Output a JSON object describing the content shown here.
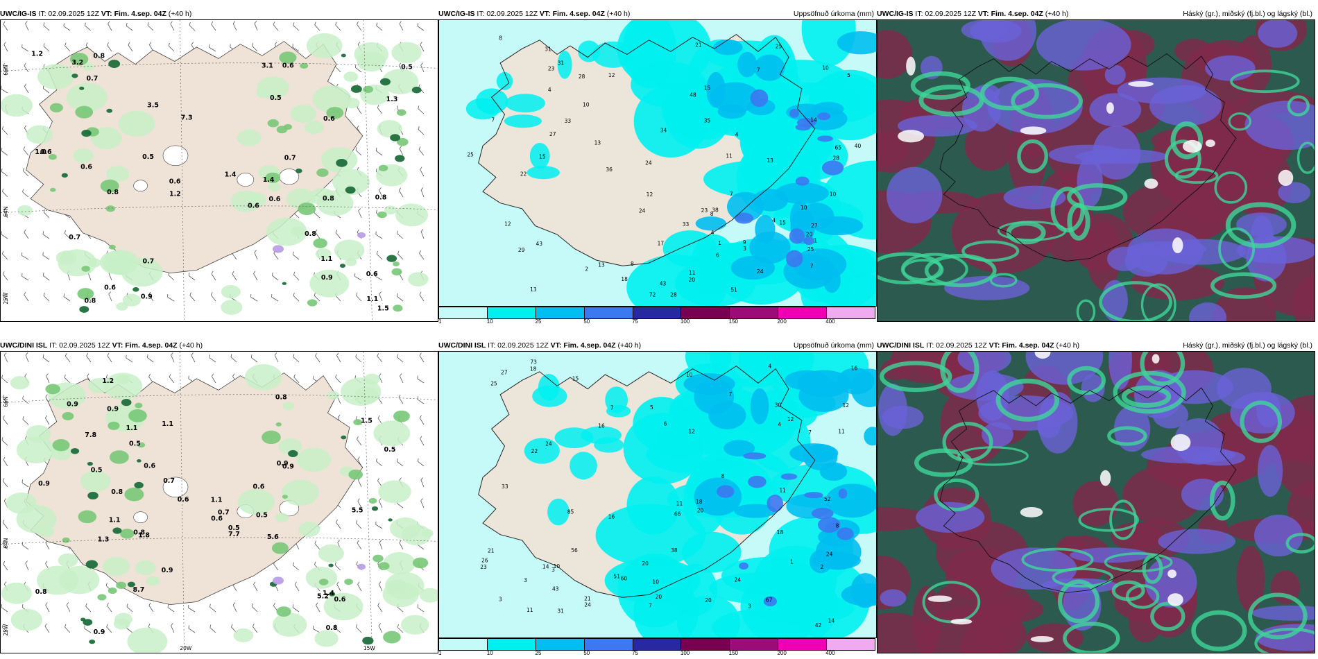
{
  "panels": [
    {
      "source": "UWC/IG-IS",
      "it": "IT: 02.09.2025 12Z",
      "vt_label": "VT: Fim. 4.sep. 04Z",
      "lead": "(+40 h)",
      "right": "",
      "labels": [
        "0.6",
        "1.3",
        "0.7",
        "0.9",
        "0.5",
        "0.8",
        "0.6",
        "0.5",
        "0.8",
        "1.1",
        "0.7",
        "0.6",
        "0.5",
        "0.8",
        "0.6",
        "0.6",
        "0.8",
        "1.4",
        "1.2",
        "0.6",
        "0.8",
        "7.3",
        "0.7",
        "0.7",
        "1.1",
        "0.8",
        "3.1",
        "0.9",
        "0.6",
        "3.2",
        "0.6",
        "0.6",
        "1.2",
        "1.0",
        "1.5",
        "3.5",
        "1.4"
      ],
      "axis": [
        "66N",
        "64N",
        "25W"
      ]
    },
    {
      "source": "UWC/IG-IS",
      "it": "IT: 02.09.2025 12Z",
      "vt_label": "VT: Fim. 4.sep. 04Z",
      "lead": "(+40 h)",
      "right": "Uppsöfnuð úrkoma (mm)",
      "labels": [
        "1",
        "15",
        "14",
        "8",
        "7",
        "4",
        "10",
        "25",
        "28",
        "35",
        "33",
        "13",
        "4",
        "21",
        "24",
        "20",
        "22",
        "24",
        "17",
        "31",
        "36",
        "25",
        "23",
        "8",
        "12",
        "18",
        "27",
        "28",
        "29",
        "72",
        "5",
        "7",
        "9",
        "13",
        "48",
        "28",
        "25",
        "65",
        "34",
        "40",
        "31",
        "3",
        "12",
        "11",
        "10",
        "38",
        "51",
        "24",
        "10",
        "11",
        "4",
        "13",
        "7",
        "15",
        "43",
        "13",
        "2",
        "4",
        "10",
        "12",
        "43",
        "23",
        "15",
        "6",
        "1",
        "8",
        "33",
        "7",
        "27",
        "20"
      ]
    },
    {
      "source": "UWC/IG-IS",
      "it": "IT: 02.09.2025 12Z",
      "vt_label": "VT: Fim. 4.sep. 04Z",
      "lead": "(+40 h)",
      "right": "Háský (gr.), miðský (fj.bl.) og lágský (bl.)"
    },
    {
      "source": "UWC/DINI ISL",
      "it": "IT: 02.09.2025 12Z",
      "vt_label": "VT: Fim. 4.sep. 04Z",
      "lead": "(+40 h)",
      "right": "",
      "labels": [
        "0.9",
        "0.9",
        "0.5",
        "0.6",
        "1.1",
        "0.5",
        "0.8",
        "1.2",
        "5.5",
        "0.9",
        "0.8",
        "1.1",
        "0.6",
        "0.6",
        "0.9",
        "0.8",
        "0.5",
        "0.5",
        "0.7",
        "0.8",
        "7.8",
        "1.4",
        "8.7",
        "7.7",
        "5.6",
        "0.5",
        "0.8",
        "0.9",
        "1.1",
        "0.6",
        "1.3",
        "5.2",
        "1.8",
        "0.9",
        "0.6",
        "0.7",
        "1.1",
        "0.9",
        "1.5"
      ],
      "axis": [
        "66N",
        "64N",
        "25W",
        "20W",
        "15W"
      ]
    },
    {
      "source": "UWC/DINI ISL",
      "it": "IT: 02.09.2025 12Z",
      "vt_label": "VT: Fim. 4.sep. 04Z",
      "lead": "(+40 h)",
      "right": "Uppsöfnuð úrkoma (mm)",
      "labels": [
        "3",
        "12",
        "8",
        "7",
        "4",
        "3",
        "11",
        "16",
        "10",
        "7",
        "3",
        "25",
        "12",
        "16",
        "21",
        "16",
        "22",
        "66",
        "20",
        "11",
        "33",
        "18",
        "30",
        "24",
        "24",
        "85",
        "6",
        "10",
        "15",
        "23",
        "38",
        "73",
        "43",
        "14",
        "56",
        "60",
        "67",
        "52",
        "42",
        "51",
        "20",
        "21",
        "27",
        "14",
        "24",
        "31",
        "20",
        "7",
        "3",
        "8",
        "11",
        "18",
        "26",
        "24",
        "20",
        "12",
        "7",
        "1",
        "4",
        "5",
        "11",
        "18",
        "10",
        "2"
      ]
    },
    {
      "source": "UWC/DINI ISL",
      "it": "IT: 02.09.2025 12Z",
      "vt_label": "VT: Fim. 4.sep. 04Z",
      "lead": "(+40 h)",
      "right": "Háský (gr.), miðský (fj.bl.) og lágský (bl.)"
    }
  ],
  "legend": {
    "ticks": [
      "1",
      "10",
      "25",
      "50",
      "75",
      "100",
      "150",
      "200",
      "400"
    ],
    "colors": [
      "#c6faf8",
      "#00f0f0",
      "#00bef0",
      "#3c78f0",
      "#2828a0",
      "#780050",
      "#9c0c78",
      "#f000b4",
      "#f0aaf0"
    ]
  },
  "styles": {
    "land": "#efe2d6",
    "sea": "#ffffff",
    "precip_light": "#c8f0c8",
    "precip_mid": "#78c878",
    "precip_dark": "#1e6e3c",
    "precip_max": "#bba0e6",
    "cloud_high": "#2d5a4e",
    "cloud_mid": "#7f2a4a",
    "cloud_low": "#6a62d8",
    "cloud_edge": "#3fd69a"
  }
}
